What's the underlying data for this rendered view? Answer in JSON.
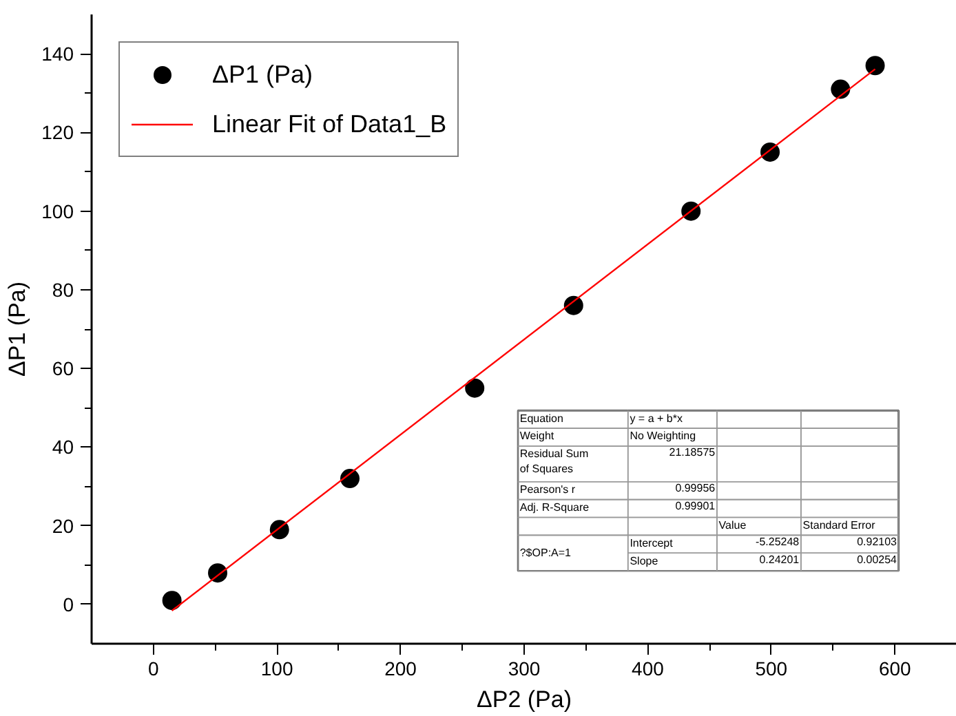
{
  "chart_data": {
    "type": "scatter",
    "xlabel": "ΔP2 (Pa)",
    "ylabel": "ΔP1 (Pa)",
    "series": [
      {
        "name": "ΔP1 (Pa)",
        "color": "#000000",
        "marker": "circle",
        "x": [
          15,
          52,
          102,
          159,
          260,
          340,
          435,
          499,
          556,
          584
        ],
        "values": [
          1,
          8,
          19,
          32,
          55,
          76,
          100,
          115,
          131,
          137
        ]
      },
      {
        "name": "Linear Fit of Data1_B",
        "type": "line",
        "color": "#ff0000",
        "line_style": "solid",
        "x": [
          15,
          584
        ],
        "values": [
          -1.6,
          136.1
        ]
      }
    ],
    "xlim": [
      -50,
      650
    ],
    "ylim": [
      -10,
      150
    ],
    "xticks": [
      0,
      {
        "value": 50,
        "label": null
      },
      100,
      {
        "value": 150,
        "label": null
      },
      200,
      {
        "value": 250,
        "label": null
      },
      300,
      {
        "value": 350,
        "label": null
      },
      400,
      {
        "value": 450,
        "label": null
      },
      500,
      {
        "value": 550,
        "label": null
      },
      600
    ],
    "yticks": [
      0,
      {
        "value": 10,
        "label": null
      },
      20,
      {
        "value": 30,
        "label": null
      },
      40,
      {
        "value": 50,
        "label": null
      },
      60,
      {
        "value": 70,
        "label": null
      },
      80,
      {
        "value": 90,
        "label": null
      },
      100,
      {
        "value": 110,
        "label": null
      },
      120,
      {
        "value": 130,
        "label": null
      },
      140
    ],
    "grid": false,
    "legend": "top left",
    "annotations": [
      "Equation",
      "y = a + b*x",
      "Weight",
      "No Weighting",
      "Residual Sum\nof Squares",
      "21.18575",
      "Pearson's r",
      "0.99956",
      "Adj. R-Square",
      "0.99901",
      "Value",
      "Standard Error",
      "?$OP:A=1",
      "Intercept",
      "-5.25248",
      "0.92103",
      "Slope",
      "0.24201",
      "0.00254"
    ]
  }
}
